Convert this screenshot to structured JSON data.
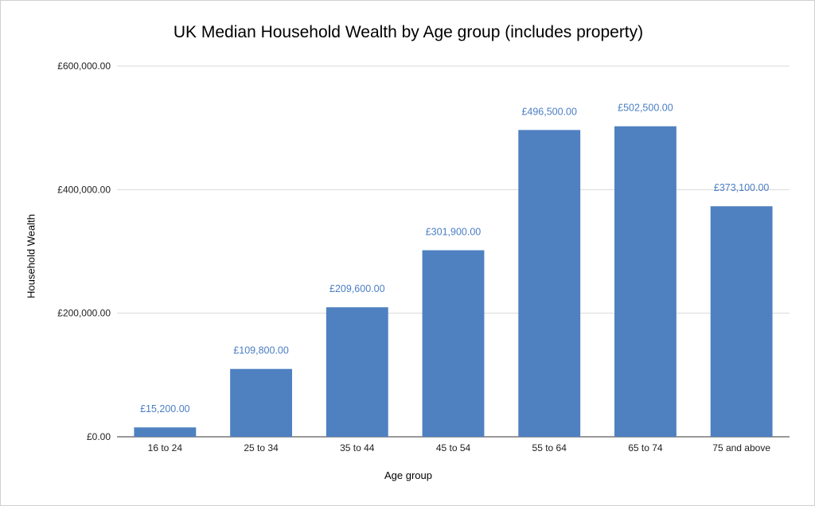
{
  "chart_data": {
    "type": "bar",
    "title": "UK Median Household Wealth by Age group (includes property)",
    "xlabel": "Age group",
    "ylabel": "Household Wealth",
    "categories": [
      "16 to 24",
      "25 to 34",
      "35 to 44",
      "45 to 54",
      "55 to 64",
      "65 to 74",
      "75 and above"
    ],
    "values": [
      15200,
      109800,
      209600,
      301900,
      496500,
      502500,
      373100
    ],
    "data_labels": [
      "£15,200.00",
      "£109,800.00",
      "£209,600.00",
      "£301,900.00",
      "£496,500.00",
      "£502,500.00",
      "£373,100.00"
    ],
    "ylim": [
      0,
      600000
    ],
    "yticks": [
      0,
      200000,
      400000,
      600000
    ],
    "ytick_labels": [
      "£0.00",
      "£200,000.00",
      "£400,000.00",
      "£600,000.00"
    ],
    "grid": true,
    "legend": "none",
    "bar_color": "#4f81c1",
    "label_color": "#4a7ec4"
  }
}
